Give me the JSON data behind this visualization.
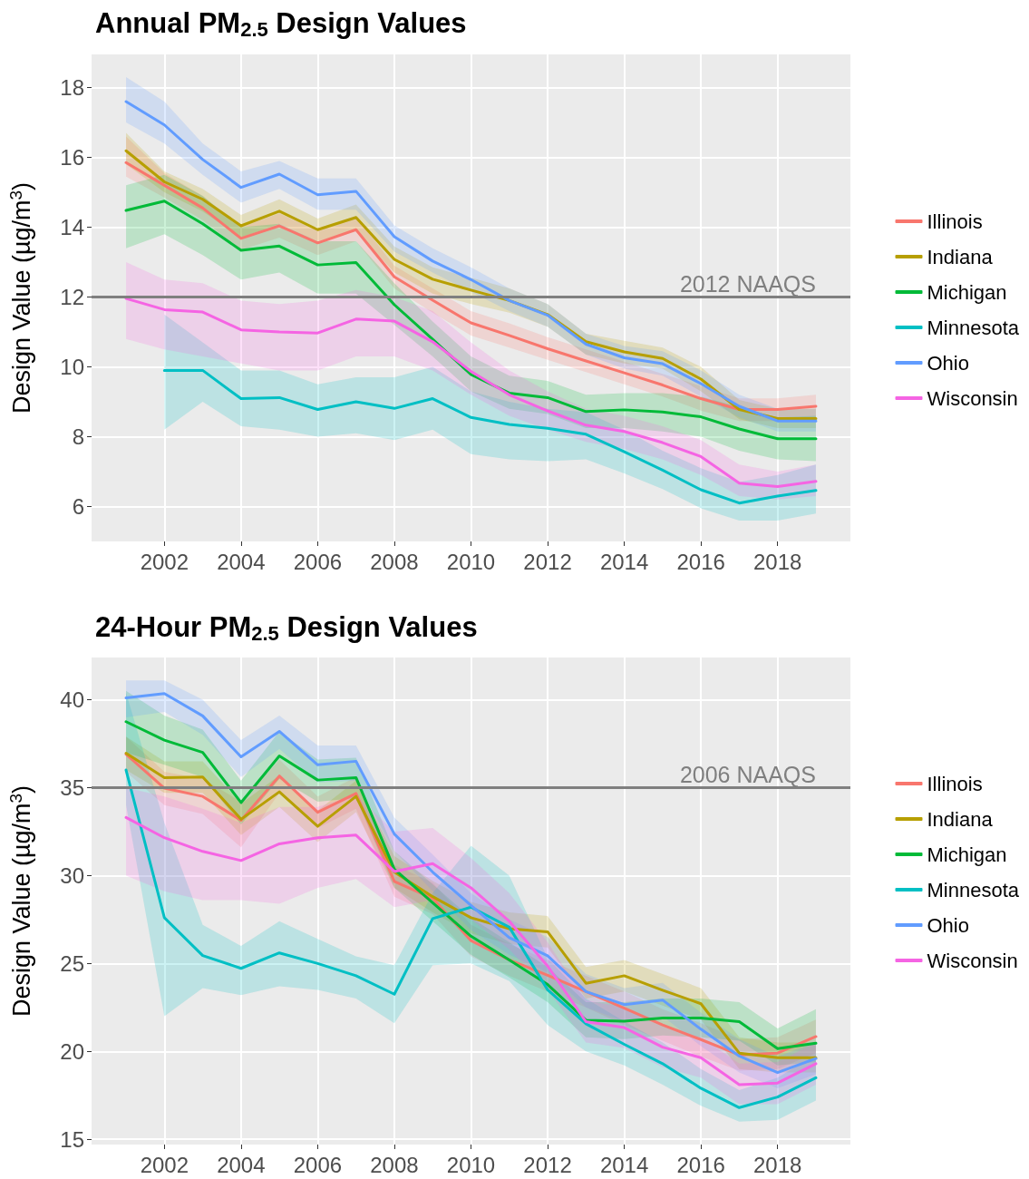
{
  "chart_data": [
    {
      "type": "line",
      "title": "Annual PM$_{2.5}$ Design Values",
      "ylabel": "Design Value (µg/m$^{3}$)",
      "x": [
        2001,
        2002,
        2003,
        2004,
        2005,
        2006,
        2007,
        2008,
        2009,
        2010,
        2011,
        2012,
        2013,
        2014,
        2015,
        2016,
        2017,
        2018,
        2019
      ],
      "xlim": [
        2000.1,
        2019.9
      ],
      "xticks": [
        2002,
        2004,
        2006,
        2008,
        2010,
        2012,
        2014,
        2016,
        2018
      ],
      "ylim": [
        5,
        18.95
      ],
      "yticks": [
        6,
        8,
        10,
        12,
        14,
        16,
        18
      ],
      "grid": true,
      "legend": "right",
      "marker": "none",
      "line_style": "solid",
      "ref_lines": [
        {
          "axis": "y",
          "value": 12,
          "label": "2012 NAAQS",
          "color": "#7f7f7f"
        }
      ],
      "series": [
        {
          "name": "Illinois",
          "color": "#f8766d",
          "values": [
            15.85,
            15.2,
            14.55,
            13.68,
            14.04,
            13.55,
            13.93,
            12.58,
            11.91,
            11.26,
            10.9,
            10.52,
            10.17,
            9.83,
            9.48,
            9.09,
            8.78,
            8.78,
            8.87
          ],
          "lower": [
            15.45,
            14.85,
            14.2,
            13.35,
            13.7,
            13.2,
            13.6,
            12.25,
            11.55,
            10.9,
            10.55,
            10.2,
            9.85,
            9.5,
            9.15,
            8.75,
            8.45,
            8.45,
            8.55
          ],
          "upper": [
            16.6,
            15.55,
            14.9,
            14.0,
            14.4,
            13.9,
            14.3,
            12.9,
            12.25,
            11.6,
            11.25,
            10.85,
            10.5,
            10.15,
            9.8,
            9.45,
            9.1,
            9.1,
            9.2
          ]
        },
        {
          "name": "Indiana",
          "color": "#b79f00",
          "values": [
            16.19,
            15.3,
            14.8,
            14.04,
            14.46,
            13.93,
            14.28,
            13.08,
            12.51,
            12.2,
            11.9,
            11.5,
            10.72,
            10.43,
            10.24,
            9.65,
            8.78,
            8.52,
            8.52
          ],
          "lower": [
            15.8,
            15.0,
            14.45,
            13.7,
            14.1,
            13.6,
            13.9,
            12.7,
            12.1,
            11.8,
            11.55,
            11.15,
            10.35,
            10.1,
            9.95,
            9.3,
            8.5,
            8.25,
            8.25
          ],
          "upper": [
            16.7,
            15.6,
            15.1,
            14.35,
            14.8,
            14.25,
            14.65,
            13.45,
            12.85,
            12.55,
            12.25,
            11.8,
            10.95,
            10.75,
            10.55,
            10.0,
            9.05,
            8.8,
            8.8
          ]
        },
        {
          "name": "Michigan",
          "color": "#00ba38",
          "values": [
            14.48,
            14.75,
            14.1,
            13.34,
            13.46,
            12.92,
            12.99,
            11.78,
            10.79,
            9.78,
            9.25,
            9.12,
            8.72,
            8.77,
            8.71,
            8.57,
            8.22,
            7.94,
            7.94
          ],
          "lower": [
            13.4,
            13.8,
            13.2,
            12.5,
            12.7,
            12.1,
            12.1,
            11.2,
            10.3,
            9.3,
            8.8,
            8.65,
            8.25,
            8.25,
            8.15,
            8.0,
            7.6,
            7.35,
            7.3
          ],
          "upper": [
            15.2,
            15.5,
            14.9,
            14.0,
            14.1,
            13.6,
            13.6,
            12.4,
            11.3,
            10.3,
            9.75,
            9.6,
            9.2,
            9.25,
            9.25,
            9.15,
            8.85,
            8.55,
            8.6
          ]
        },
        {
          "name": "Minnesota",
          "color": "#00bfc4",
          "values": [
            null,
            9.9,
            9.9,
            9.09,
            9.12,
            8.78,
            9.0,
            8.81,
            9.09,
            8.55,
            8.35,
            8.24,
            8.07,
            7.57,
            7.04,
            6.48,
            6.1,
            6.3,
            6.46
          ],
          "lower": [
            null,
            8.2,
            9.0,
            8.3,
            8.2,
            8.0,
            8.1,
            7.9,
            8.2,
            7.5,
            7.35,
            7.3,
            7.35,
            6.95,
            6.5,
            5.95,
            5.6,
            5.6,
            5.8
          ],
          "upper": [
            null,
            11.5,
            10.7,
            9.9,
            9.9,
            9.5,
            9.7,
            9.7,
            10.0,
            9.3,
            9.0,
            8.8,
            8.7,
            8.2,
            7.6,
            7.1,
            6.7,
            6.9,
            7.2
          ]
        },
        {
          "name": "Ohio",
          "color": "#619cff",
          "values": [
            17.6,
            16.93,
            15.94,
            15.14,
            15.52,
            14.93,
            15.03,
            13.73,
            13.03,
            12.5,
            11.9,
            11.48,
            10.65,
            10.26,
            10.09,
            9.52,
            8.87,
            8.45,
            8.45
          ],
          "lower": [
            17.0,
            16.4,
            15.5,
            14.7,
            15.1,
            14.5,
            14.5,
            13.3,
            12.7,
            12.15,
            11.6,
            11.15,
            10.35,
            9.95,
            9.75,
            9.15,
            8.55,
            8.15,
            8.15
          ],
          "upper": [
            18.3,
            17.6,
            16.4,
            15.6,
            15.9,
            15.4,
            15.4,
            14.05,
            13.4,
            12.85,
            12.25,
            11.8,
            10.95,
            10.6,
            10.45,
            9.9,
            9.2,
            8.8,
            8.8
          ]
        },
        {
          "name": "Wisconsin",
          "color": "#f564e3",
          "values": [
            11.96,
            11.64,
            11.57,
            11.06,
            11.0,
            10.97,
            11.37,
            11.31,
            10.72,
            9.87,
            9.2,
            8.74,
            8.33,
            8.15,
            7.83,
            7.43,
            6.67,
            6.57,
            6.72
          ],
          "lower": [
            10.8,
            10.5,
            10.3,
            10.1,
            9.9,
            9.9,
            10.3,
            10.3,
            9.9,
            9.2,
            8.6,
            8.2,
            7.85,
            7.65,
            7.35,
            6.9,
            6.3,
            6.2,
            6.3
          ],
          "upper": [
            13.0,
            12.5,
            12.4,
            11.9,
            11.8,
            11.9,
            12.2,
            12.0,
            11.6,
            10.7,
            9.9,
            9.3,
            8.8,
            8.6,
            8.3,
            7.9,
            7.2,
            7.0,
            7.2
          ]
        }
      ]
    },
    {
      "type": "line",
      "title": "24-Hour PM$_{2.5}$ Design Values",
      "ylabel": "Design Value (µg/m$^{3}$)",
      "x": [
        2001,
        2002,
        2003,
        2004,
        2005,
        2006,
        2007,
        2008,
        2009,
        2010,
        2011,
        2012,
        2013,
        2014,
        2015,
        2016,
        2017,
        2018,
        2019
      ],
      "xlim": [
        2000.1,
        2019.9
      ],
      "xticks": [
        2002,
        2004,
        2006,
        2008,
        2010,
        2012,
        2014,
        2016,
        2018
      ],
      "ylim": [
        14.7,
        42.4
      ],
      "yticks": [
        15,
        20,
        25,
        30,
        35,
        40
      ],
      "grid": true,
      "legend": "right",
      "marker": "none",
      "line_style": "solid",
      "ref_lines": [
        {
          "axis": "y",
          "value": 35,
          "label": "2006 NAAQS",
          "color": "#7f7f7f"
        }
      ],
      "series": [
        {
          "name": "Illinois",
          "color": "#f8766d",
          "values": [
            36.9,
            34.97,
            34.5,
            33.14,
            35.66,
            33.6,
            34.67,
            29.67,
            28.7,
            26.3,
            25.2,
            24.33,
            23.4,
            22.46,
            21.5,
            20.67,
            19.8,
            19.9,
            20.84
          ],
          "lower": [
            35.9,
            34.0,
            33.5,
            31.6,
            34.7,
            32.7,
            33.8,
            28.8,
            27.8,
            25.4,
            24.3,
            23.4,
            22.5,
            21.5,
            20.6,
            19.7,
            18.9,
            19.0,
            19.9
          ],
          "upper": [
            37.9,
            35.9,
            35.5,
            34.2,
            36.6,
            34.5,
            35.6,
            30.6,
            29.6,
            27.2,
            26.1,
            25.2,
            24.3,
            23.4,
            22.4,
            21.6,
            20.7,
            20.8,
            21.8
          ]
        },
        {
          "name": "Indiana",
          "color": "#b79f00",
          "values": [
            36.96,
            35.57,
            35.6,
            33.2,
            34.76,
            32.8,
            34.5,
            30.2,
            28.8,
            27.6,
            26.98,
            26.8,
            23.87,
            24.3,
            23.48,
            22.71,
            19.9,
            19.64,
            19.64
          ],
          "lower": [
            36.0,
            34.7,
            34.7,
            32.3,
            33.9,
            31.9,
            33.6,
            29.3,
            27.9,
            26.7,
            26.1,
            25.9,
            23.0,
            23.4,
            22.6,
            21.8,
            19.0,
            18.8,
            18.8
          ],
          "upper": [
            37.9,
            36.5,
            36.5,
            34.1,
            35.7,
            33.7,
            35.4,
            31.1,
            29.7,
            28.5,
            27.9,
            27.7,
            24.8,
            25.2,
            24.4,
            23.6,
            20.8,
            20.5,
            20.5
          ]
        },
        {
          "name": "Michigan",
          "color": "#00ba38",
          "values": [
            38.75,
            37.7,
            37.0,
            34.15,
            36.8,
            35.43,
            35.57,
            30.36,
            28.45,
            26.55,
            25.2,
            23.8,
            21.77,
            21.72,
            21.9,
            21.9,
            21.69,
            20.15,
            20.46
          ],
          "lower": [
            37.0,
            36.3,
            35.6,
            32.9,
            35.5,
            34.2,
            34.4,
            29.3,
            27.4,
            25.5,
            24.2,
            22.8,
            20.8,
            20.7,
            20.9,
            20.8,
            20.6,
            19.2,
            19.4
          ],
          "upper": [
            40.5,
            39.1,
            38.3,
            35.4,
            38.2,
            36.6,
            36.7,
            31.4,
            29.5,
            27.6,
            26.2,
            24.8,
            22.8,
            22.8,
            23.0,
            23.0,
            22.8,
            21.3,
            22.4
          ]
        },
        {
          "name": "Minnesota",
          "color": "#00bfc4",
          "values": [
            36.0,
            27.6,
            25.45,
            24.72,
            25.6,
            25.0,
            24.3,
            23.25,
            27.55,
            28.2,
            27.06,
            23.5,
            21.57,
            20.4,
            19.3,
            17.9,
            16.8,
            17.4,
            18.5
          ],
          "lower": [
            34.0,
            22.0,
            23.6,
            23.2,
            23.7,
            23.5,
            23.0,
            21.6,
            24.9,
            25.0,
            24.0,
            21.5,
            20.0,
            19.2,
            18.1,
            16.9,
            16.0,
            16.1,
            17.2
          ],
          "upper": [
            40.4,
            33.0,
            27.2,
            26.0,
            27.4,
            26.4,
            25.4,
            24.9,
            29.0,
            31.7,
            30.0,
            25.3,
            23.0,
            21.7,
            20.5,
            19.0,
            17.8,
            18.5,
            19.8
          ]
        },
        {
          "name": "Ohio",
          "color": "#619cff",
          "values": [
            40.1,
            40.35,
            39.08,
            36.75,
            38.2,
            36.3,
            36.5,
            32.36,
            30.2,
            28.3,
            26.47,
            25.44,
            23.4,
            22.66,
            22.92,
            21.26,
            19.73,
            18.79,
            19.59
          ],
          "lower": [
            39.0,
            39.3,
            38.0,
            35.6,
            37.2,
            35.3,
            35.4,
            31.4,
            29.1,
            26.9,
            25.5,
            24.5,
            22.5,
            21.7,
            22.0,
            20.3,
            18.8,
            17.9,
            18.7
          ],
          "upper": [
            41.1,
            41.1,
            40.0,
            37.7,
            39.1,
            37.4,
            37.4,
            33.3,
            31.2,
            29.0,
            27.5,
            26.5,
            24.4,
            23.6,
            23.9,
            22.2,
            20.7,
            19.7,
            20.5
          ]
        },
        {
          "name": "Wisconsin",
          "color": "#f564e3",
          "values": [
            33.3,
            32.15,
            31.37,
            30.85,
            31.8,
            32.15,
            32.3,
            30.23,
            30.68,
            29.3,
            27.4,
            24.85,
            21.69,
            21.35,
            20.24,
            19.64,
            18.1,
            18.2,
            19.3
          ],
          "lower": [
            30.0,
            29.1,
            28.6,
            28.6,
            28.4,
            29.3,
            29.8,
            28.2,
            28.6,
            27.5,
            25.8,
            23.5,
            20.5,
            20.2,
            19.1,
            18.5,
            17.0,
            17.0,
            18.1
          ],
          "upper": [
            35.0,
            34.5,
            33.8,
            33.0,
            33.9,
            33.9,
            34.6,
            32.5,
            32.7,
            31.0,
            29.0,
            26.2,
            22.9,
            22.5,
            21.4,
            20.8,
            19.3,
            19.4,
            20.5
          ]
        }
      ]
    }
  ]
}
